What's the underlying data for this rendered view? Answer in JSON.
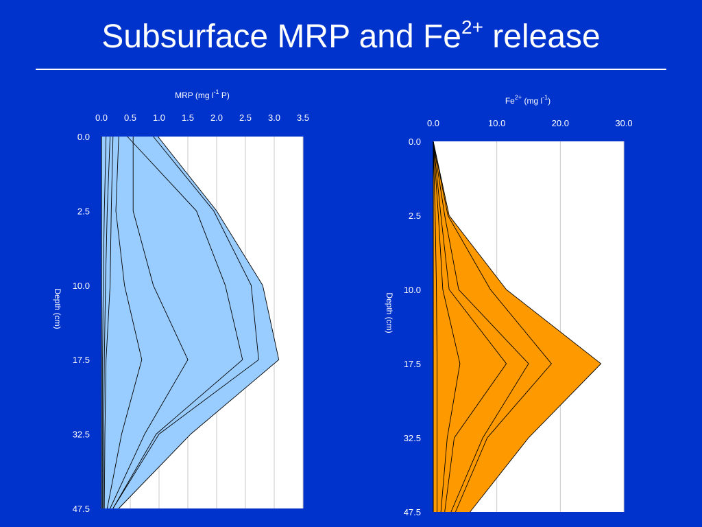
{
  "slide": {
    "title_main": "Subsurface MRP and Fe",
    "title_sup": "2+",
    "title_rest": " release"
  },
  "colors": {
    "background": "#0033cc",
    "mrp_fill": "#99ccff",
    "fe_fill": "#ff9900",
    "plot_bg": "#ffffff",
    "line": "#000000",
    "text": "#ffffff",
    "gridline": "#c8c8c8"
  },
  "chart_data": [
    {
      "type": "area",
      "title": "",
      "xlabel_parts": [
        "MRP (mg l",
        "-1",
        " P)"
      ],
      "ylabel": "Depth (cm)",
      "x_axis_position": "top",
      "xlim": [
        0,
        3.5
      ],
      "x_ticks": [
        "0.0",
        "0.5",
        "1.0",
        "1.5",
        "2.0",
        "2.5",
        "3.0",
        "3.5"
      ],
      "y_categories": [
        "0.0",
        "2.5",
        "10.0",
        "17.5",
        "32.5",
        "47.5"
      ],
      "y_reversed": true,
      "grid": "vertical",
      "profiles": [
        [
          0.08,
          0.05,
          0.03,
          0.02,
          0.02,
          0.02
        ],
        [
          0.15,
          0.1,
          0.07,
          0.05,
          0.04,
          0.03
        ],
        [
          0.2,
          0.17,
          0.15,
          0.08,
          0.06,
          0.05
        ],
        [
          0.3,
          0.25,
          0.4,
          0.7,
          0.35,
          0.1
        ],
        [
          0.55,
          0.55,
          0.9,
          1.5,
          0.75,
          0.15
        ],
        [
          0.45,
          1.65,
          2.15,
          2.45,
          0.95,
          0.2
        ],
        [
          0.9,
          1.95,
          2.6,
          2.73,
          1.0,
          0.2
        ],
        [
          0.98,
          2.0,
          2.8,
          3.08,
          1.55,
          0.3
        ]
      ]
    },
    {
      "type": "area",
      "title": "",
      "xlabel_parts": [
        "Fe",
        "2+",
        " (mg l",
        "-1",
        ")"
      ],
      "ylabel": "Depth (cm)",
      "x_axis_position": "top",
      "xlim": [
        0,
        30
      ],
      "x_ticks": [
        "0.0",
        "10.0",
        "20.0",
        "30.0"
      ],
      "y_categories": [
        "0.0",
        "2.5",
        "10.0",
        "17.5",
        "32.5",
        "47.5"
      ],
      "y_reversed": true,
      "grid": "vertical",
      "profiles": [
        [
          0,
          0.3,
          0.5,
          0.6,
          0.6,
          0.6
        ],
        [
          0,
          0.8,
          1.5,
          4.2,
          2.2,
          1.2
        ],
        [
          0,
          1.2,
          2.5,
          11.5,
          3.3,
          1.8
        ],
        [
          0,
          1.8,
          4.0,
          15.0,
          7.8,
          2.8
        ],
        [
          0,
          2.3,
          9.0,
          18.6,
          8.5,
          3.5
        ],
        [
          0,
          2.5,
          11.5,
          26.4,
          15.0,
          5.8
        ]
      ]
    }
  ]
}
